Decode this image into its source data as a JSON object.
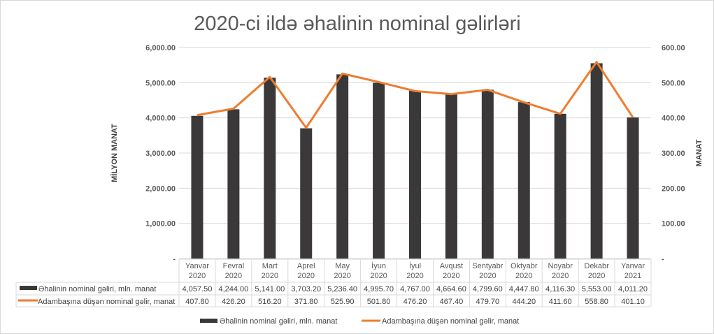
{
  "chart_data": {
    "type": "bar+line",
    "title": "2020-ci ildə əhalinin nominal gəlirləri",
    "ylabel": "MİLYON MANAT",
    "y2label": "MANAT",
    "ylim": [
      0,
      6000
    ],
    "y2lim": [
      0,
      600
    ],
    "yticks": [
      "-",
      "1,000.00",
      "2,000.00",
      "3,000.00",
      "4,000.00",
      "5,000.00",
      "6,000.00"
    ],
    "y2ticks": [
      "-",
      "100.00",
      "200.00",
      "300.00",
      "400.00",
      "500.00",
      "600.00"
    ],
    "categories": [
      [
        "Yanvar",
        "2020"
      ],
      [
        "Fevral",
        "2020"
      ],
      [
        "Mart",
        "2020"
      ],
      [
        "Aprel",
        "2020"
      ],
      [
        "May",
        "2020"
      ],
      [
        "İyun",
        "2020"
      ],
      [
        "İyul",
        "2020"
      ],
      [
        "Avqust",
        "2020"
      ],
      [
        "Sentyabr",
        "2020"
      ],
      [
        "Oktyabr",
        "2020"
      ],
      [
        "Noyabr",
        "2020"
      ],
      [
        "Dekabr",
        "2020"
      ],
      [
        "Yanvar",
        "2021"
      ]
    ],
    "series": [
      {
        "name": "Əhalinin nominal gəliri, mln. manat",
        "type": "bar",
        "axis": "left",
        "color": "#3a3838",
        "values": [
          4057.5,
          4244.0,
          5141.0,
          3703.2,
          5236.4,
          4995.7,
          4767.0,
          4664.6,
          4799.6,
          4447.8,
          4116.3,
          5553.0,
          4011.2
        ],
        "labels": [
          "4,057.50",
          "4,244.00",
          "5,141.00",
          "3,703.20",
          "5,236.40",
          "4,995.70",
          "4,767.00",
          "4,664.60",
          "4,799.60",
          "4,447.80",
          "4,116.30",
          "5,553.00",
          "4,011.20"
        ]
      },
      {
        "name": "Adambaşına düşən nominal gəlir, manat",
        "type": "line",
        "axis": "right",
        "color": "#ed7d31",
        "values": [
          407.8,
          426.2,
          516.2,
          371.8,
          525.9,
          501.8,
          476.2,
          467.4,
          479.7,
          444.2,
          411.6,
          558.8,
          401.1
        ],
        "labels": [
          "407.80",
          "426.20",
          "516.20",
          "371.80",
          "525.90",
          "501.80",
          "476.20",
          "467.40",
          "479.70",
          "444.20",
          "411.60",
          "558.80",
          "401.10"
        ]
      }
    ],
    "grid": true,
    "legend": "bottom",
    "data_table": true
  }
}
